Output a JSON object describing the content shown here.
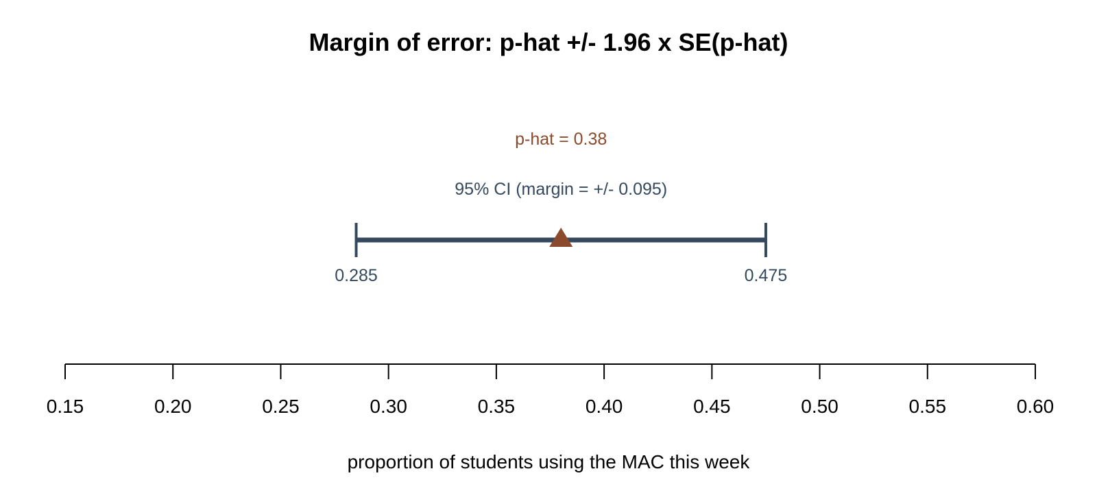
{
  "chart_data": {
    "type": "interval",
    "title": "Margin of error: p-hat +/- 1.96 x SE(p-hat)",
    "xlabel": "proportion of students using the MAC this week",
    "xlim": [
      0.15,
      0.6
    ],
    "ticks": [
      0.15,
      0.2,
      0.25,
      0.3,
      0.35,
      0.4,
      0.45,
      0.5,
      0.55,
      0.6
    ],
    "tick_labels": [
      "0.15",
      "0.20",
      "0.25",
      "0.30",
      "0.35",
      "0.40",
      "0.45",
      "0.50",
      "0.55",
      "0.60"
    ],
    "estimate": 0.38,
    "estimate_label": "p-hat = 0.38",
    "ci_lower": 0.285,
    "ci_upper": 0.475,
    "ci_lower_label": "0.285",
    "ci_upper_label": "0.475",
    "ci_label": "95% CI (margin = +/- 0.095)",
    "colors": {
      "interval": "#34495e",
      "estimate": "#8b4a2b",
      "axis": "#000000"
    }
  }
}
